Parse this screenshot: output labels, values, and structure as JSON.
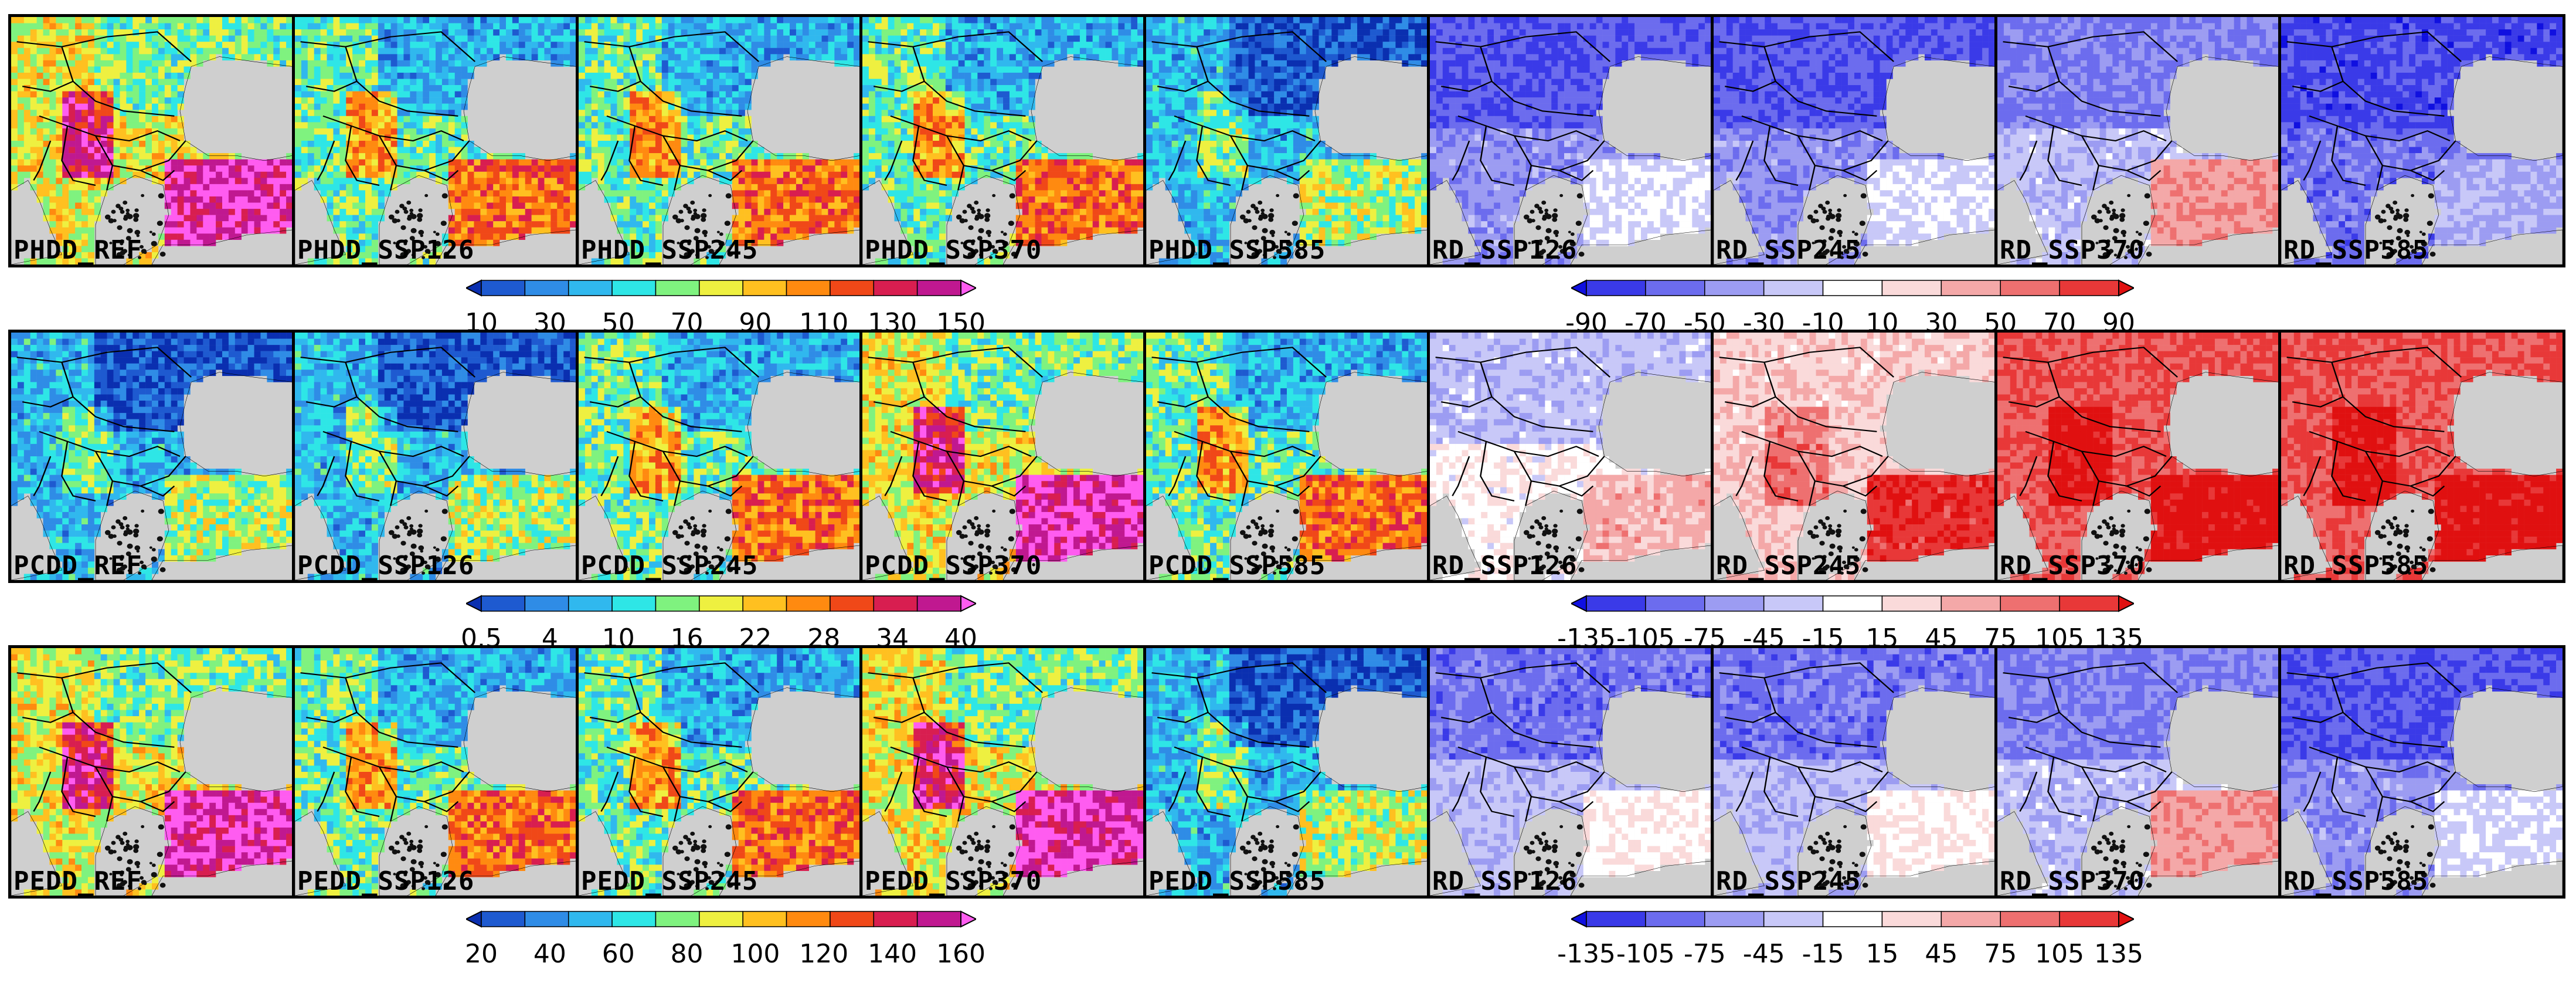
{
  "figure": {
    "description_rows": 3,
    "rows": [
      {
        "row_id": "phdd",
        "panels": [
          {
            "label": "PHDD_REF",
            "scheme": "seq",
            "level": "high"
          },
          {
            "label": "PHDD_SSP126",
            "scheme": "seq",
            "level": "mid"
          },
          {
            "label": "PHDD_SSP245",
            "scheme": "seq",
            "level": "mid"
          },
          {
            "label": "PHDD_SSP370",
            "scheme": "seq",
            "level": "mid"
          },
          {
            "label": "PHDD_SSP585",
            "scheme": "seq",
            "level": "low"
          },
          {
            "label": "RD_SSP126",
            "scheme": "div",
            "level": "blue_mid"
          },
          {
            "label": "RD_SSP245",
            "scheme": "div",
            "level": "blue_mid"
          },
          {
            "label": "RD_SSP370",
            "scheme": "div",
            "level": "blue_light_redturkey"
          },
          {
            "label": "RD_SSP585",
            "scheme": "div",
            "level": "blue_strong"
          }
        ],
        "seq_colorbar": {
          "ticks": [
            "10",
            "30",
            "50",
            "70",
            "90",
            "110",
            "130",
            "150"
          ]
        },
        "div_colorbar": {
          "ticks": [
            "-90",
            "-70",
            "-50",
            "-30",
            "-10",
            "10",
            "30",
            "50",
            "70",
            "90"
          ]
        }
      },
      {
        "row_id": "pcdd",
        "panels": [
          {
            "label": "PCDD_REF",
            "scheme": "seq",
            "level": "low"
          },
          {
            "label": "PCDD_SSP126",
            "scheme": "seq",
            "level": "low"
          },
          {
            "label": "PCDD_SSP245",
            "scheme": "seq",
            "level": "mid"
          },
          {
            "label": "PCDD_SSP370",
            "scheme": "seq",
            "level": "high"
          },
          {
            "label": "PCDD_SSP585",
            "scheme": "seq",
            "level": "mid"
          },
          {
            "label": "RD_SSP126",
            "scheme": "div",
            "level": "white_light"
          },
          {
            "label": "RD_SSP245",
            "scheme": "div",
            "level": "red_mid"
          },
          {
            "label": "RD_SSP370",
            "scheme": "div",
            "level": "red_strong"
          },
          {
            "label": "RD_SSP585",
            "scheme": "div",
            "level": "red_strong"
          }
        ],
        "seq_colorbar": {
          "ticks": [
            "0.5",
            "4",
            "10",
            "16",
            "22",
            "28",
            "34",
            "40"
          ]
        },
        "div_colorbar": {
          "ticks": [
            "-135",
            "-105",
            "-75",
            "-45",
            "-15",
            "15",
            "45",
            "75",
            "105",
            "135"
          ]
        }
      },
      {
        "row_id": "pedd",
        "panels": [
          {
            "label": "PEDD_REF",
            "scheme": "seq",
            "level": "high"
          },
          {
            "label": "PEDD_SSP126",
            "scheme": "seq",
            "level": "mid"
          },
          {
            "label": "PEDD_SSP245",
            "scheme": "seq",
            "level": "mid"
          },
          {
            "label": "PEDD_SSP370",
            "scheme": "seq",
            "level": "high"
          },
          {
            "label": "PEDD_SSP585",
            "scheme": "seq",
            "level": "low"
          },
          {
            "label": "RD_SSP126",
            "scheme": "div",
            "level": "blue_light"
          },
          {
            "label": "RD_SSP245",
            "scheme": "div",
            "level": "blue_light"
          },
          {
            "label": "RD_SSP370",
            "scheme": "div",
            "level": "blue_light_redturkey"
          },
          {
            "label": "RD_SSP585",
            "scheme": "div",
            "level": "blue_mid"
          }
        ],
        "seq_colorbar": {
          "ticks": [
            "20",
            "40",
            "60",
            "80",
            "100",
            "120",
            "140",
            "160"
          ]
        },
        "div_colorbar": {
          "ticks": [
            "-135",
            "-105",
            "-75",
            "-45",
            "-15",
            "15",
            "45",
            "75",
            "105",
            "135"
          ]
        }
      }
    ]
  },
  "colors": {
    "sequential": [
      "#0a2fb0",
      "#1e5ad0",
      "#2f8ce6",
      "#30b8ee",
      "#2ee6e6",
      "#7ff27f",
      "#eef040",
      "#ffc020",
      "#ff8a10",
      "#f04818",
      "#d81e50",
      "#c01890",
      "#ff5cf0"
    ],
    "diverging": [
      "#1010e0",
      "#3a3ae8",
      "#6c6cee",
      "#9c9cf2",
      "#c8c8f8",
      "#ffffff",
      "#fadada",
      "#f4a8a8",
      "#ee7070",
      "#e83838",
      "#e01010"
    ],
    "land_outline": "#000000",
    "sea": "#cfcfcf"
  }
}
